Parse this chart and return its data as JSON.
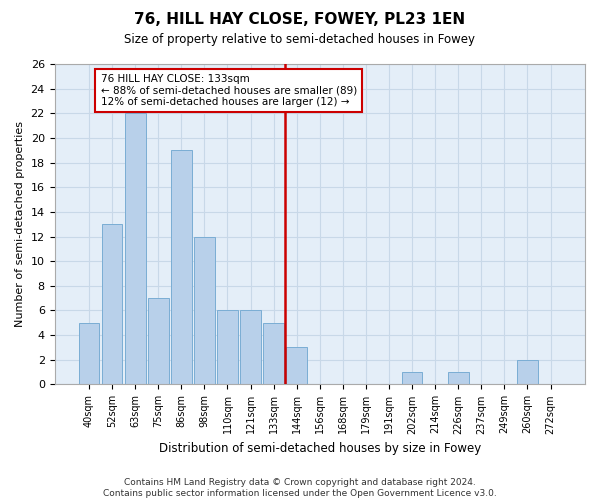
{
  "title": "76, HILL HAY CLOSE, FOWEY, PL23 1EN",
  "subtitle": "Size of property relative to semi-detached houses in Fowey",
  "xlabel": "Distribution of semi-detached houses by size in Fowey",
  "ylabel": "Number of semi-detached properties",
  "bar_labels": [
    "40sqm",
    "52sqm",
    "63sqm",
    "75sqm",
    "86sqm",
    "98sqm",
    "110sqm",
    "121sqm",
    "133sqm",
    "144sqm",
    "156sqm",
    "168sqm",
    "179sqm",
    "191sqm",
    "202sqm",
    "214sqm",
    "226sqm",
    "237sqm",
    "249sqm",
    "260sqm",
    "272sqm"
  ],
  "bar_values": [
    5,
    13,
    22,
    7,
    19,
    12,
    6,
    6,
    5,
    3,
    0,
    0,
    0,
    0,
    1,
    0,
    1,
    0,
    0,
    2,
    0
  ],
  "bar_color": "#b8d0ea",
  "bar_edgecolor": "#7aadd4",
  "highlight_index": 8,
  "vline_x": 8.5,
  "vline_color": "#cc0000",
  "annotation_text": "76 HILL HAY CLOSE: 133sqm\n← 88% of semi-detached houses are smaller (89)\n12% of semi-detached houses are larger (12) →",
  "annotation_box_color": "#cc0000",
  "ylim": [
    0,
    26
  ],
  "yticks": [
    0,
    2,
    4,
    6,
    8,
    10,
    12,
    14,
    16,
    18,
    20,
    22,
    24,
    26
  ],
  "grid_color": "#c8d8e8",
  "bg_color": "#e4eef8",
  "footer1": "Contains HM Land Registry data © Crown copyright and database right 2024.",
  "footer2": "Contains public sector information licensed under the Open Government Licence v3.0."
}
